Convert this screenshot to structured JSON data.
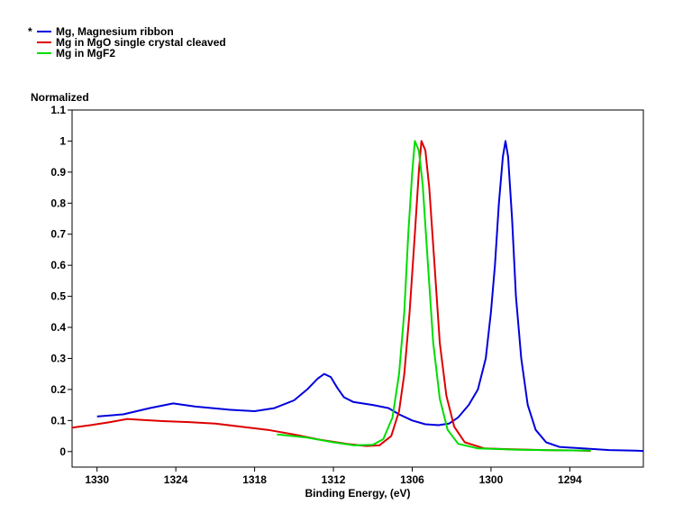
{
  "chart_data": {
    "type": "line",
    "title": "",
    "xlabel": "Binding Energy, (eV)",
    "ylabel": "Normalized",
    "xlim": [
      1331.9,
      1288.4
    ],
    "ylim": [
      -0.05,
      1.1
    ],
    "x_reversed": true,
    "x_ticks": [
      1330,
      1324,
      1318,
      1312,
      1306,
      1300,
      1294
    ],
    "y_ticks": [
      0,
      0.1,
      0.2,
      0.3,
      0.4,
      0.5,
      0.6,
      0.7,
      0.8,
      0.9,
      1,
      1.1
    ],
    "grid": false,
    "legend_position": "top-left",
    "legend_marker": "*",
    "series": [
      {
        "name": "Mg, Magnesium ribbon",
        "color": "#0000dd",
        "points": [
          [
            1330,
            0.113
          ],
          [
            1328,
            0.12
          ],
          [
            1326,
            0.14
          ],
          [
            1324.2,
            0.155
          ],
          [
            1322.5,
            0.145
          ],
          [
            1320,
            0.135
          ],
          [
            1318,
            0.13
          ],
          [
            1316.5,
            0.14
          ],
          [
            1315,
            0.165
          ],
          [
            1314,
            0.2
          ],
          [
            1313.2,
            0.235
          ],
          [
            1312.7,
            0.25
          ],
          [
            1312.2,
            0.24
          ],
          [
            1311.7,
            0.205
          ],
          [
            1311.2,
            0.175
          ],
          [
            1310.5,
            0.16
          ],
          [
            1309,
            0.15
          ],
          [
            1307.8,
            0.14
          ],
          [
            1307,
            0.12
          ],
          [
            1306,
            0.1
          ],
          [
            1305,
            0.088
          ],
          [
            1304,
            0.085
          ],
          [
            1303.2,
            0.09
          ],
          [
            1302.5,
            0.11
          ],
          [
            1301.7,
            0.15
          ],
          [
            1301,
            0.2
          ],
          [
            1300.4,
            0.3
          ],
          [
            1300,
            0.45
          ],
          [
            1299.7,
            0.6
          ],
          [
            1299.4,
            0.8
          ],
          [
            1299.1,
            0.95
          ],
          [
            1298.9,
            1.0
          ],
          [
            1298.7,
            0.95
          ],
          [
            1298.4,
            0.75
          ],
          [
            1298.1,
            0.5
          ],
          [
            1297.7,
            0.3
          ],
          [
            1297.2,
            0.15
          ],
          [
            1296.6,
            0.07
          ],
          [
            1295.8,
            0.03
          ],
          [
            1294.8,
            0.015
          ],
          [
            1293,
            0.01
          ],
          [
            1291,
            0.005
          ],
          [
            1289,
            0.003
          ],
          [
            1288.4,
            0.002
          ]
        ]
      },
      {
        "name": "Mg in MgO single crystal cleaved",
        "color": "#dd0000",
        "points": [
          [
            1331.9,
            0.077
          ],
          [
            1330.5,
            0.085
          ],
          [
            1329,
            0.095
          ],
          [
            1327.7,
            0.105
          ],
          [
            1326.5,
            0.102
          ],
          [
            1325,
            0.098
          ],
          [
            1323,
            0.095
          ],
          [
            1321,
            0.09
          ],
          [
            1319,
            0.08
          ],
          [
            1317,
            0.07
          ],
          [
            1315,
            0.055
          ],
          [
            1313,
            0.038
          ],
          [
            1311,
            0.025
          ],
          [
            1309.5,
            0.018
          ],
          [
            1308.5,
            0.02
          ],
          [
            1307.6,
            0.05
          ],
          [
            1307,
            0.13
          ],
          [
            1306.6,
            0.25
          ],
          [
            1306.2,
            0.45
          ],
          [
            1305.8,
            0.7
          ],
          [
            1305.5,
            0.9
          ],
          [
            1305.3,
            1.0
          ],
          [
            1305,
            0.97
          ],
          [
            1304.7,
            0.85
          ],
          [
            1304.3,
            0.6
          ],
          [
            1303.9,
            0.35
          ],
          [
            1303.4,
            0.18
          ],
          [
            1302.8,
            0.08
          ],
          [
            1302,
            0.03
          ],
          [
            1300.5,
            0.01
          ],
          [
            1299,
            0.008
          ],
          [
            1296,
            0.005
          ],
          [
            1293,
            0.003
          ],
          [
            1292.4,
            0.002
          ]
        ]
      },
      {
        "name": "Mg in MgF2",
        "color": "#00dd00",
        "points": [
          [
            1316.3,
            0.055
          ],
          [
            1314,
            0.045
          ],
          [
            1312,
            0.03
          ],
          [
            1310.4,
            0.02
          ],
          [
            1309,
            0.022
          ],
          [
            1308.2,
            0.04
          ],
          [
            1307.5,
            0.11
          ],
          [
            1307,
            0.25
          ],
          [
            1306.6,
            0.45
          ],
          [
            1306.3,
            0.7
          ],
          [
            1306,
            0.9
          ],
          [
            1305.8,
            1.0
          ],
          [
            1305.5,
            0.97
          ],
          [
            1305.2,
            0.86
          ],
          [
            1304.8,
            0.6
          ],
          [
            1304.4,
            0.35
          ],
          [
            1303.9,
            0.17
          ],
          [
            1303.3,
            0.07
          ],
          [
            1302.5,
            0.025
          ],
          [
            1301,
            0.01
          ],
          [
            1298,
            0.006
          ],
          [
            1295,
            0.004
          ],
          [
            1292.4,
            0.003
          ]
        ]
      }
    ]
  }
}
